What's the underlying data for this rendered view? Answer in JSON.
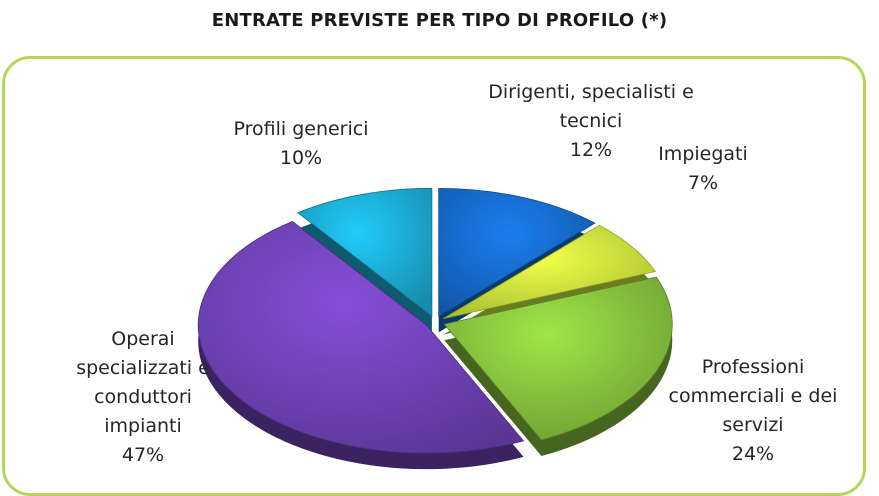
{
  "chart_data": {
    "type": "pie",
    "title": "ENTRATE PREVISTE PER TIPO DI PROFILO (*)",
    "slices": [
      {
        "label": "Dirigenti, specialisti e\ntecnici",
        "pct_label": "12%",
        "value": 12,
        "color": "#1565c0"
      },
      {
        "label": "Impiegati",
        "pct_label": "7%",
        "value": 7,
        "color": "#c2e03a"
      },
      {
        "label": "Professioni\ncommerciali e dei\nservizi",
        "pct_label": "24%",
        "value": 24,
        "color": "#7fb83a"
      },
      {
        "label": "Operai\nspecializzati e\nconduttori\nimpianti",
        "pct_label": "47%",
        "value": 47,
        "color": "#6a3fae"
      },
      {
        "label": "Profili generici",
        "pct_label": "10%",
        "value": 10,
        "color": "#1aa3c8"
      }
    ],
    "legend": "none"
  }
}
